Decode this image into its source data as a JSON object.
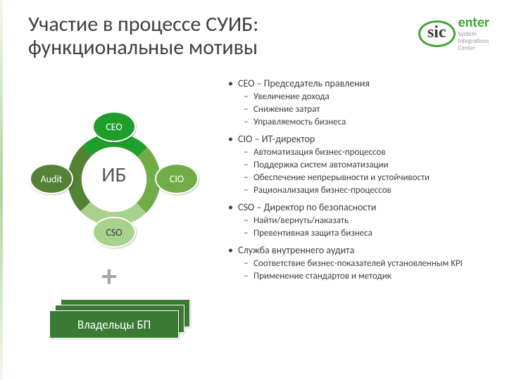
{
  "title_l1": "Участие в процессе СУИБ:",
  "title_l2": "функциональные мотивы",
  "logo": {
    "sic": "sic",
    "enter": "enter",
    "sub1": "System",
    "sub2": "Integrations",
    "sub3": "Center"
  },
  "diagram": {
    "center": "ИБ",
    "nodes": {
      "ceo": "CEO",
      "cio": "CIO",
      "cso": "CSO",
      "audit": "Audit"
    },
    "ring_colors": {
      "top": "#1f9e2b",
      "right": "#70ad47",
      "bottom": "#a9d18e",
      "left": "#548235"
    },
    "node_colors": {
      "ceo": "#1f9e2b",
      "cio": "#70ad47",
      "cso": "#a9d18e",
      "audit": "#548235"
    },
    "plus": "+",
    "bp_label": "Владельцы БП",
    "bp_color": "#3b7a35"
  },
  "bullets": [
    {
      "title": "CEO – Председатель правления",
      "items": [
        "Увеличение дохода",
        "Снижение затрат",
        "Управляемость бизнеса"
      ]
    },
    {
      "title": "CIO – ИТ-директор",
      "items": [
        "Автоматизация бизнес-процессов",
        "Поддержка систем автоматизации",
        "Обеспечение непрерывности и устойчивости",
        "Рационализация бизнес-процессов"
      ]
    },
    {
      "title": "CSO – Директор по безопасности",
      "items": [
        "Найти/вернуть/наказать",
        "Превентивная защита бизнеса"
      ]
    },
    {
      "title": "Служба внутреннего аудита",
      "items": [
        "Соответствие бизнес-показателей установленным KPI",
        "Применение стандартов и методик"
      ]
    }
  ]
}
